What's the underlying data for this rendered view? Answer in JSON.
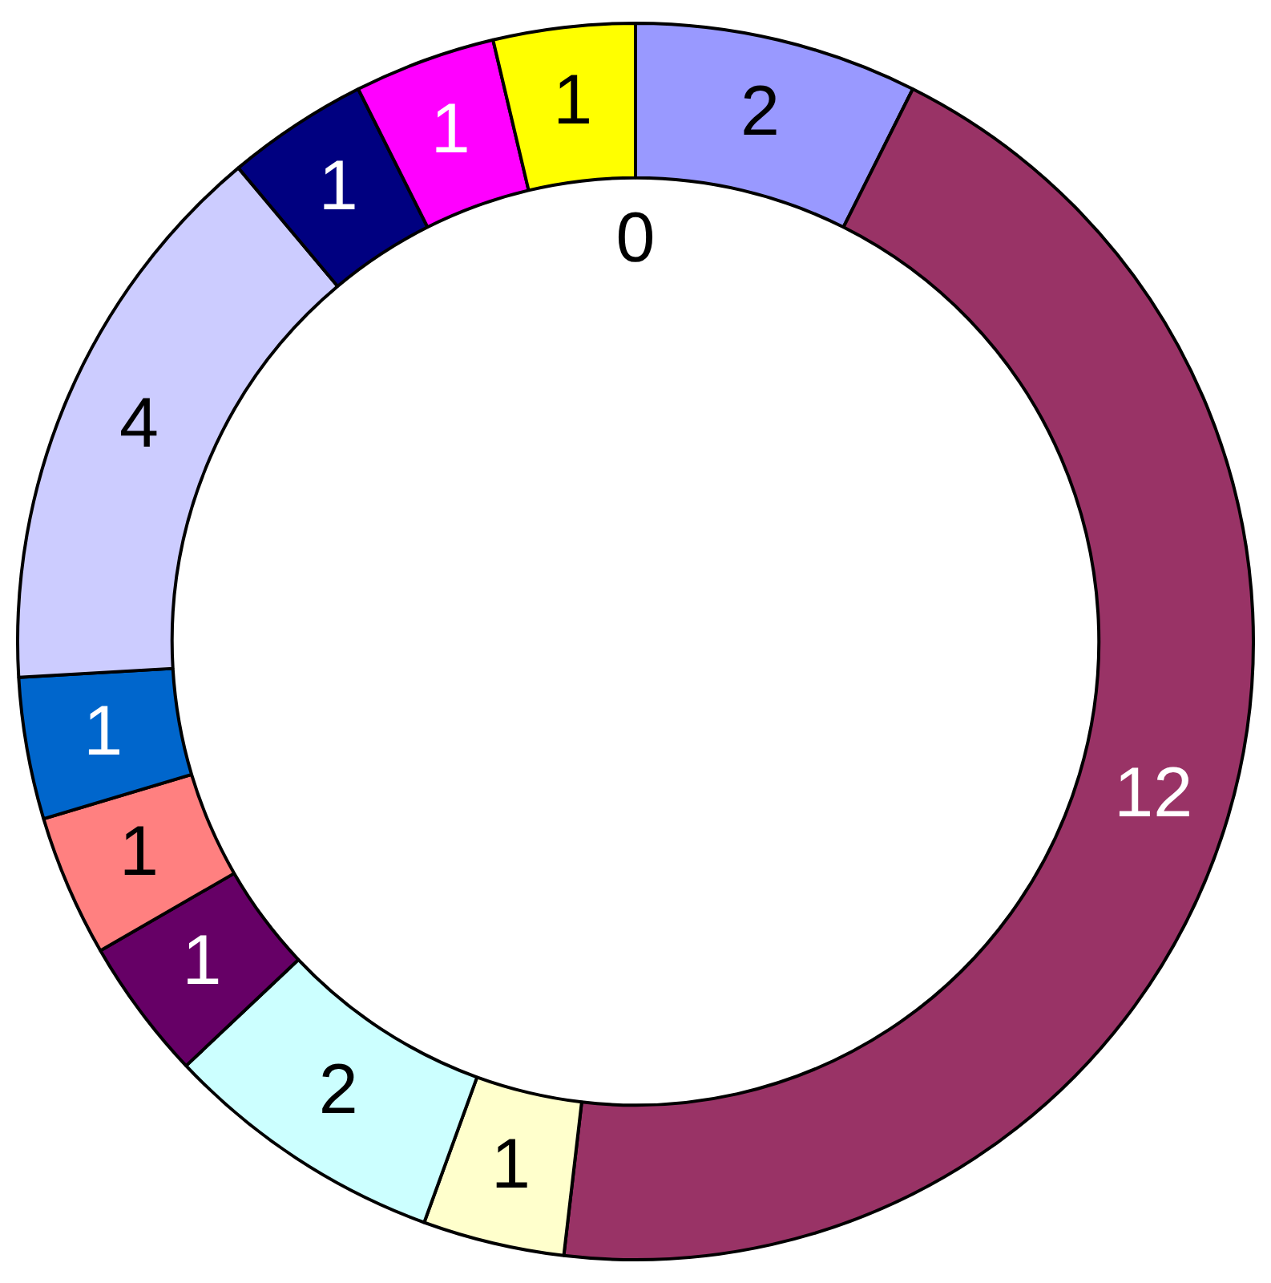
{
  "chart_data": {
    "type": "donut",
    "categories": [
      null,
      null,
      null,
      null,
      null,
      null,
      null,
      null,
      null,
      null,
      null
    ],
    "values": [
      2,
      12,
      1,
      2,
      1,
      1,
      1,
      4,
      1,
      1,
      1
    ],
    "colors": [
      "#9999ff",
      "#993366",
      "#ffffcc",
      "#ccffff",
      "#660066",
      "#ff8080",
      "#0066cc",
      "#ccccff",
      "#000080",
      "#ff00ff",
      "#ffff00"
    ],
    "annotations": [
      "0"
    ],
    "data_labels": true
  }
}
